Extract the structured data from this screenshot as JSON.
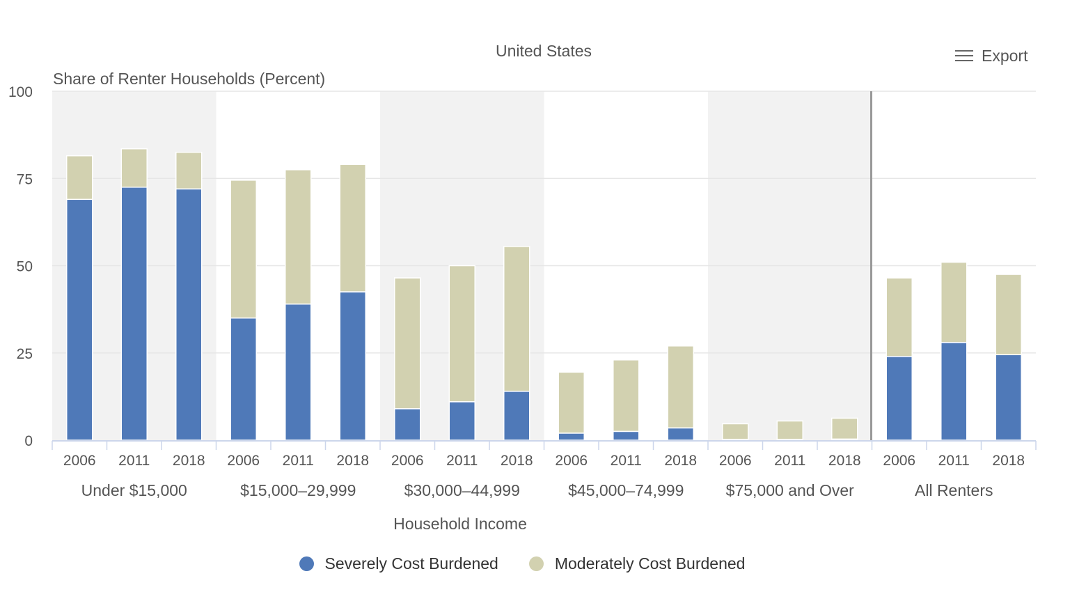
{
  "chart_data": {
    "type": "bar",
    "stacked": true,
    "title": "United States",
    "ylabel": "Share of Renter Households (Percent)",
    "xlabel": "Household Income",
    "ylim": [
      0,
      100
    ],
    "yticks": [
      0,
      25,
      50,
      75,
      100
    ],
    "groups": [
      {
        "label": "Under $15,000",
        "years": [
          "2006",
          "2011",
          "2018"
        ],
        "severe": [
          69,
          72.5,
          72
        ],
        "moderate": [
          12.5,
          11,
          10.5
        ]
      },
      {
        "label": "$15,000–29,999",
        "years": [
          "2006",
          "2011",
          "2018"
        ],
        "severe": [
          35,
          39,
          42.5
        ],
        "moderate": [
          39.5,
          38.5,
          36.5
        ]
      },
      {
        "label": "$30,000–44,999",
        "years": [
          "2006",
          "2011",
          "2018"
        ],
        "severe": [
          9,
          11,
          14
        ],
        "moderate": [
          37.5,
          39,
          41.5
        ]
      },
      {
        "label": "$45,000–74,999",
        "years": [
          "2006",
          "2011",
          "2018"
        ],
        "severe": [
          2,
          2.5,
          3.5
        ],
        "moderate": [
          17.5,
          20.5,
          23.5
        ]
      },
      {
        "label": "$75,000 and Over",
        "years": [
          "2006",
          "2011",
          "2018"
        ],
        "severe": [
          0.2,
          0.2,
          0.3
        ],
        "moderate": [
          4.5,
          5.3,
          6
        ]
      },
      {
        "label": "All Renters",
        "years": [
          "2006",
          "2011",
          "2018"
        ],
        "severe": [
          24,
          28,
          24.5
        ],
        "moderate": [
          22.5,
          23,
          23
        ]
      }
    ],
    "series": [
      {
        "name": "Severely Cost Burdened",
        "key": "severe",
        "color": "#4f79b8"
      },
      {
        "name": "Moderately Cost Burdened",
        "key": "moderate",
        "color": "#d2d1b0"
      }
    ],
    "band_color": "#f2f2f2",
    "separator_before_group": "All Renters",
    "legend_position": "bottom-center"
  },
  "toolbar": {
    "export_label": "Export"
  },
  "legend": {
    "items": [
      {
        "label": "Severely Cost Burdened",
        "color": "#4f79b8"
      },
      {
        "label": "Moderately Cost Burdened",
        "color": "#d2d1b0"
      }
    ]
  }
}
